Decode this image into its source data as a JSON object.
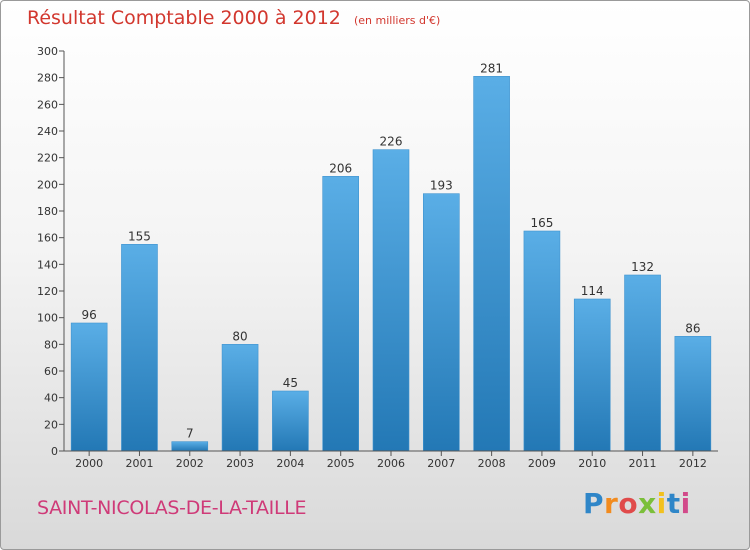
{
  "header": {
    "title": "Résultat Comptable 2000 à 2012",
    "unit": "(en milliers d'€)"
  },
  "footer": {
    "place": "SAINT-NICOLAS-DE-LA-TAILLE",
    "logo_letters": [
      "P",
      "r",
      "o",
      "x",
      "i",
      "t",
      "i"
    ],
    "logo_colors": [
      "#2f86c8",
      "#f28b1e",
      "#e04a4a",
      "#7bbf3a",
      "#f2c11e",
      "#2f86c8",
      "#d24a8a"
    ]
  },
  "chart_data": {
    "type": "bar",
    "categories": [
      "2000",
      "2001",
      "2002",
      "2003",
      "2004",
      "2005",
      "2006",
      "2007",
      "2008",
      "2009",
      "2010",
      "2011",
      "2012"
    ],
    "values": [
      96,
      155,
      7,
      80,
      45,
      206,
      226,
      193,
      281,
      165,
      114,
      132,
      86
    ],
    "ylim": [
      0,
      300
    ],
    "yticks": [
      0,
      20,
      40,
      60,
      80,
      100,
      120,
      140,
      160,
      180,
      200,
      220,
      240,
      260,
      280,
      300
    ],
    "grid": false,
    "legend": "none",
    "bar_color_top": "#5aaee6",
    "bar_color_bottom": "#2378b5"
  }
}
